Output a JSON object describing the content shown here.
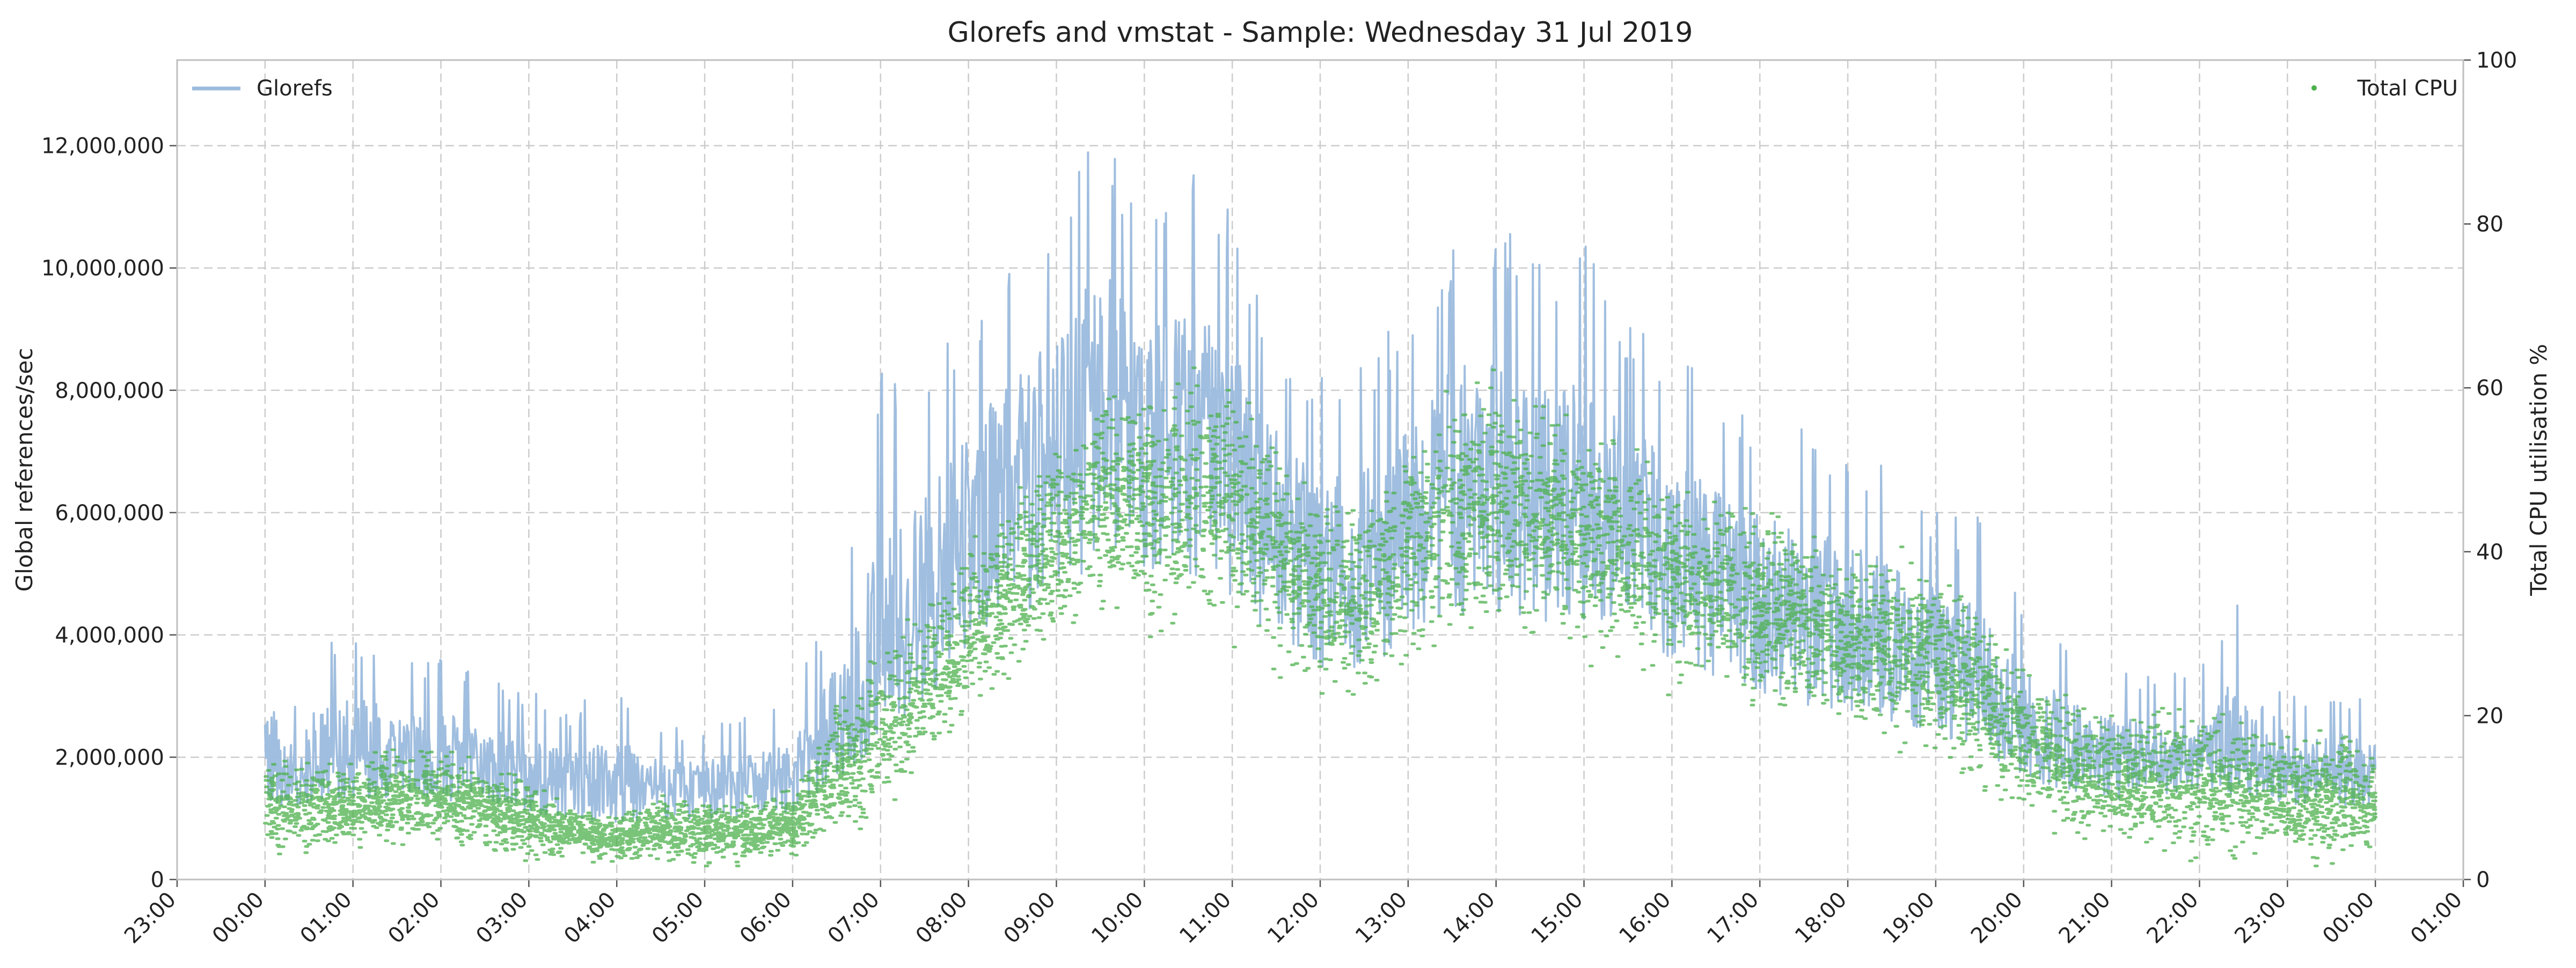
{
  "chart_data": {
    "type": "line",
    "title": "Glorefs and vmstat - Sample: Wednesday 31 Jul 2019",
    "xlabel": "",
    "ylabel": "Global references/sec",
    "y2label": "Total CPU utilisation %",
    "x_ticks": [
      "23:00",
      "00:00",
      "01:00",
      "02:00",
      "03:00",
      "04:00",
      "05:00",
      "06:00",
      "07:00",
      "08:00",
      "09:00",
      "10:00",
      "11:00",
      "12:00",
      "13:00",
      "14:00",
      "15:00",
      "16:00",
      "17:00",
      "18:00",
      "19:00",
      "20:00",
      "21:00",
      "22:00",
      "23:00",
      "00:00",
      "01:00"
    ],
    "xlim_hours": [
      -1,
      25
    ],
    "y_ticks": [
      "0",
      "2,000,000",
      "4,000,000",
      "6,000,000",
      "8,000,000",
      "10,000,000",
      "12,000,000"
    ],
    "ylim": [
      0,
      13400000
    ],
    "y2_ticks": [
      "0",
      "20",
      "40",
      "60",
      "80",
      "100"
    ],
    "y2lim": [
      0,
      100
    ],
    "grid": true,
    "legend": [
      {
        "name": "Glorefs",
        "placement": "top-left",
        "color": "#9bbbdd"
      },
      {
        "name": "Total CPU",
        "placement": "top-right",
        "color": "#4cb04c"
      }
    ],
    "series": [
      {
        "name": "Glorefs",
        "axis": "left",
        "color": "#9bbbdd",
        "x_hours": [
          0,
          0.5,
          1,
          1.5,
          2,
          2.5,
          3,
          3.5,
          4,
          4.5,
          5,
          5.5,
          6,
          6.5,
          7,
          7.5,
          8,
          8.5,
          9,
          9.5,
          10,
          10.5,
          11,
          11.5,
          12,
          12.5,
          13,
          13.5,
          14,
          14.5,
          15,
          15.5,
          16,
          16.5,
          17,
          17.5,
          18,
          18.5,
          19,
          19.5,
          20,
          20.5,
          21,
          21.5,
          22,
          22.5,
          23,
          23.5,
          24
        ],
        "y_mid": [
          1800000,
          1900000,
          2000000,
          2100000,
          2000000,
          1900000,
          1700000,
          1500000,
          1400000,
          1500000,
          1500000,
          1600000,
          1700000,
          2400000,
          3500000,
          4500000,
          5600000,
          6500000,
          7300000,
          7700000,
          7800000,
          7600000,
          7000000,
          6000000,
          5200000,
          5100000,
          6200000,
          6600000,
          6700000,
          6500000,
          6200000,
          5900000,
          5400000,
          5000000,
          4600000,
          4300000,
          4100000,
          3900000,
          3700000,
          3200000,
          2500000,
          2200000,
          2000000,
          2100000,
          2200000,
          2000000,
          1900000,
          1800000,
          1800000
        ],
        "y_peak": [
          4500000,
          3900000,
          4300000,
          3500000,
          3700000,
          3300000,
          3100000,
          2800000,
          3400000,
          2500000,
          2500000,
          2800000,
          3000000,
          4800000,
          8300000,
          8300000,
          9500000,
          10300000,
          11000000,
          12900000,
          10500000,
          11800000,
          11000000,
          9000000,
          8200000,
          8600000,
          9300000,
          10600000,
          10700000,
          10400000,
          10500000,
          9200000,
          8700000,
          8000000,
          7800000,
          7400000,
          7400000,
          6700000,
          6000000,
          6000000,
          4700000,
          3800000,
          3400000,
          3400000,
          3600000,
          5000000,
          3000000,
          3100000,
          3000000
        ]
      },
      {
        "name": "Total CPU",
        "axis": "right",
        "color": "#4cb04c",
        "x_hours": [
          0,
          0.5,
          1,
          1.5,
          2,
          2.5,
          3,
          3.5,
          4,
          4.5,
          5,
          5.5,
          6,
          6.5,
          7,
          7.5,
          8,
          8.5,
          9,
          9.5,
          10,
          10.5,
          11,
          11.5,
          12,
          12.5,
          13,
          13.5,
          14,
          14.5,
          15,
          15.5,
          16,
          16.5,
          17,
          17.5,
          18,
          18.5,
          19,
          19.5,
          20,
          20.5,
          21,
          21.5,
          22,
          22.5,
          23,
          23.5,
          24
        ],
        "y_mid": [
          9,
          9,
          9,
          10,
          10,
          9,
          7,
          6,
          5,
          6,
          6,
          6,
          7,
          13,
          18,
          24,
          30,
          36,
          41,
          46,
          46,
          46,
          45,
          40,
          35,
          33,
          40,
          45,
          45,
          44,
          42,
          40,
          37,
          35,
          33,
          31,
          29,
          28,
          26,
          23,
          17,
          14,
          12,
          12,
          12,
          11,
          10,
          10,
          9
        ],
        "y_min": [
          3,
          3,
          4,
          4,
          4,
          4,
          2,
          3,
          2,
          2,
          2,
          2,
          3,
          5,
          8,
          14,
          20,
          24,
          28,
          33,
          31,
          30,
          30,
          26,
          23,
          21,
          26,
          30,
          30,
          29,
          28,
          26,
          24,
          23,
          21,
          19,
          18,
          16,
          15,
          12,
          8,
          6,
          4,
          3,
          3,
          3,
          2,
          2,
          2
        ]
      }
    ]
  }
}
